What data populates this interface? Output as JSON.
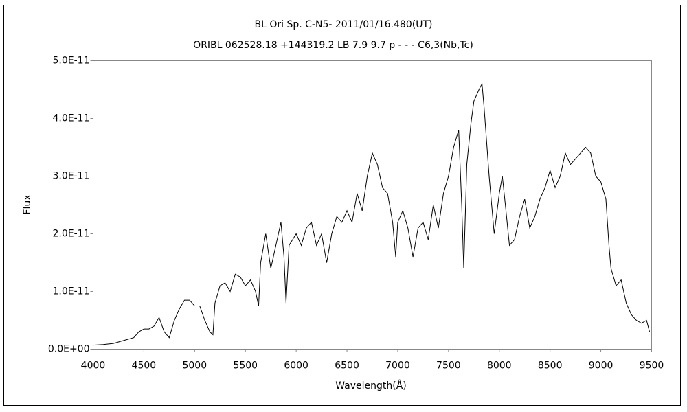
{
  "chart_data": {
    "type": "line",
    "title": "BL Ori    Sp. C-N5-    2011/01/16.480(UT)",
    "subtitle": "ORIBL 062528.18 +144319.2 LB 7.9 9.7 p - - - C6,3(Nb,Tc)",
    "xlabel": "Wavelength(Å)",
    "ylabel": "Flux",
    "xlim": [
      4000,
      9500
    ],
    "xticks": [
      4000,
      4500,
      5000,
      5500,
      6000,
      6500,
      7000,
      7500,
      8000,
      8500,
      9000,
      9500
    ],
    "ylim": [
      0,
      5e-11
    ],
    "yticks": [
      {
        "value": 0,
        "label": "0.0E+00"
      },
      {
        "value": 1e-11,
        "label": "1.0E-11"
      },
      {
        "value": 2e-11,
        "label": "2.0E-11"
      },
      {
        "value": 3e-11,
        "label": "3.0E-11"
      },
      {
        "value": 4e-11,
        "label": "4.0E-11"
      },
      {
        "value": 5e-11,
        "label": "5.0E-11"
      }
    ],
    "grid": false,
    "color": "#000000",
    "x": [
      4000,
      4100,
      4200,
      4300,
      4400,
      4450,
      4500,
      4550,
      4600,
      4650,
      4700,
      4750,
      4800,
      4850,
      4900,
      4950,
      5000,
      5050,
      5100,
      5150,
      5180,
      5200,
      5250,
      5300,
      5350,
      5400,
      5450,
      5500,
      5550,
      5600,
      5630,
      5650,
      5700,
      5750,
      5800,
      5850,
      5880,
      5900,
      5930,
      6000,
      6050,
      6100,
      6150,
      6200,
      6250,
      6300,
      6350,
      6400,
      6450,
      6500,
      6550,
      6600,
      6650,
      6700,
      6750,
      6800,
      6850,
      6900,
      6950,
      6980,
      7000,
      7050,
      7100,
      7150,
      7200,
      7250,
      7300,
      7350,
      7400,
      7450,
      7500,
      7550,
      7600,
      7630,
      7650,
      7680,
      7720,
      7750,
      7800,
      7830,
      7850,
      7900,
      7950,
      8000,
      8030,
      8060,
      8100,
      8150,
      8200,
      8250,
      8300,
      8350,
      8400,
      8450,
      8500,
      8550,
      8600,
      8650,
      8700,
      8750,
      8800,
      8850,
      8900,
      8950,
      9000,
      9050,
      9080,
      9100,
      9150,
      9200,
      9250,
      9300,
      9350,
      9400,
      9450,
      9480
    ],
    "values": [
      7e-13,
      8e-13,
      1e-12,
      1.5e-12,
      2e-12,
      3e-12,
      3.5e-12,
      3.5e-12,
      4e-12,
      5.5e-12,
      3e-12,
      2e-12,
      5e-12,
      7e-12,
      8.5e-12,
      8.5e-12,
      7.5e-12,
      7.5e-12,
      5e-12,
      3e-12,
      2.5e-12,
      8e-12,
      1.1e-11,
      1.15e-11,
      1e-11,
      1.3e-11,
      1.25e-11,
      1.1e-11,
      1.2e-11,
      1e-11,
      7.5e-12,
      1.5e-11,
      2e-11,
      1.4e-11,
      1.8e-11,
      2.2e-11,
      1.6e-11,
      8e-12,
      1.8e-11,
      2e-11,
      1.8e-11,
      2.1e-11,
      2.2e-11,
      1.8e-11,
      2e-11,
      1.5e-11,
      2e-11,
      2.3e-11,
      2.2e-11,
      2.4e-11,
      2.2e-11,
      2.7e-11,
      2.4e-11,
      3e-11,
      3.4e-11,
      3.2e-11,
      2.8e-11,
      2.7e-11,
      2.2e-11,
      1.6e-11,
      2.2e-11,
      2.4e-11,
      2.1e-11,
      1.6e-11,
      2.1e-11,
      2.2e-11,
      1.9e-11,
      2.5e-11,
      2.1e-11,
      2.7e-11,
      3e-11,
      3.5e-11,
      3.8e-11,
      2.5e-11,
      1.4e-11,
      3.2e-11,
      3.9e-11,
      4.3e-11,
      4.5e-11,
      4.6e-11,
      4.2e-11,
      3e-11,
      2e-11,
      2.7e-11,
      3e-11,
      2.5e-11,
      1.8e-11,
      1.9e-11,
      2.3e-11,
      2.6e-11,
      2.1e-11,
      2.3e-11,
      2.6e-11,
      2.8e-11,
      3.1e-11,
      2.8e-11,
      3e-11,
      3.4e-11,
      3.2e-11,
      3.3e-11,
      3.4e-11,
      3.5e-11,
      3.4e-11,
      3e-11,
      2.9e-11,
      2.6e-11,
      1.8e-11,
      1.4e-11,
      1.1e-11,
      1.2e-11,
      8e-12,
      6e-12,
      5e-12,
      4.5e-12,
      5e-12,
      3e-12
    ]
  }
}
